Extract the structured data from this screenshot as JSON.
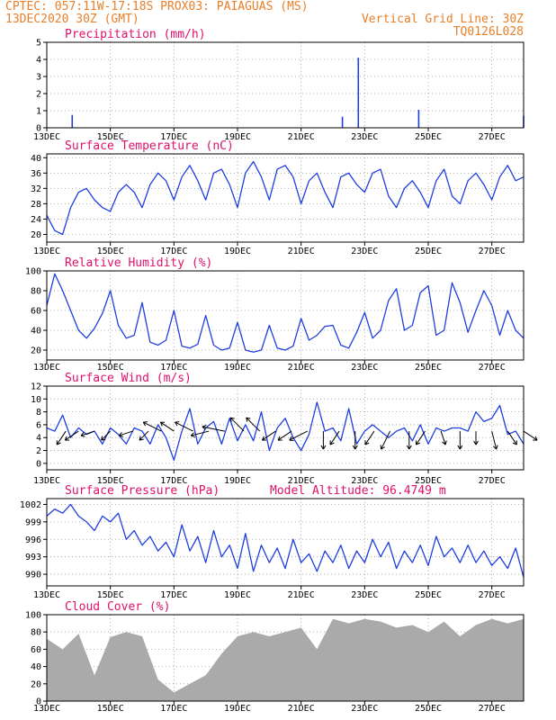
{
  "header": {
    "line1_left": "CPTEC:   057:11W-17:18S   PROX03: PAIAGUAS (MS)",
    "line2_left": "13DEC2020 30Z (GMT)",
    "line2_right": "Vertical Grid Line: 30Z",
    "line3_right": "TQ0126L028"
  },
  "colors": {
    "header": "#e8802a",
    "panel_title": "#e0106a",
    "series": "#1f3fdf",
    "cloud_fill": "#aaaaaa",
    "wind_arrow": "#000000"
  },
  "x_axis": {
    "labels": [
      "13DEC",
      "15DEC",
      "17DEC",
      "19DEC",
      "21DEC",
      "23DEC",
      "25DEC",
      "27DEC"
    ],
    "label_days": [
      0,
      2,
      4,
      6,
      8,
      10,
      12,
      14
    ],
    "range_days": [
      0,
      15
    ]
  },
  "chart_data": [
    {
      "type": "bar",
      "title": "Precipitation (mm/h)",
      "ylim": [
        0,
        5
      ],
      "yticks": [
        "0",
        "1",
        "2",
        "3",
        "4",
        "5"
      ],
      "x_days": [
        0.8,
        9.3,
        9.8,
        11.7,
        15.0
      ],
      "values": [
        0.75,
        0.65,
        4.1,
        1.05,
        0.7
      ]
    },
    {
      "type": "line",
      "title": "Surface Temperature (nC)",
      "ylim": [
        18,
        41
      ],
      "yticks": [
        "20",
        "24",
        "28",
        "32",
        "36",
        "40"
      ],
      "x": [
        0,
        0.25,
        0.5,
        0.75,
        1.0,
        1.25,
        1.5,
        1.75,
        2.0,
        2.25,
        2.5,
        2.75,
        3.0,
        3.25,
        3.5,
        3.75,
        4.0,
        4.25,
        4.5,
        4.75,
        5.0,
        5.25,
        5.5,
        5.75,
        6.0,
        6.25,
        6.5,
        6.75,
        7.0,
        7.25,
        7.5,
        7.75,
        8.0,
        8.25,
        8.5,
        8.75,
        9.0,
        9.25,
        9.5,
        9.75,
        10.0,
        10.25,
        10.5,
        10.75,
        11.0,
        11.25,
        11.5,
        11.75,
        12.0,
        12.25,
        12.5,
        12.75,
        13.0,
        13.25,
        13.5,
        13.75,
        14.0,
        14.25,
        14.5,
        14.75,
        15.0
      ],
      "values": [
        25,
        21,
        20,
        27,
        31,
        32,
        29,
        27,
        26,
        31,
        33,
        31,
        27,
        33,
        36,
        34,
        29,
        35,
        38,
        34,
        29,
        36,
        37,
        33,
        27,
        36,
        39,
        35,
        29,
        37,
        38,
        35,
        28,
        34,
        36,
        31,
        27,
        35,
        36,
        33,
        31,
        36,
        37,
        30,
        27,
        32,
        34,
        31,
        27,
        34,
        37,
        30,
        28,
        34,
        36,
        33,
        29,
        35,
        38,
        34,
        35
      ]
    },
    {
      "type": "line",
      "title": "Relative Humidity (%)",
      "ylim": [
        10,
        100
      ],
      "yticks": [
        "20",
        "40",
        "60",
        "80",
        "100"
      ],
      "x": [
        0,
        0.25,
        0.5,
        0.75,
        1.0,
        1.25,
        1.5,
        1.75,
        2.0,
        2.25,
        2.5,
        2.75,
        3.0,
        3.25,
        3.5,
        3.75,
        4.0,
        4.25,
        4.5,
        4.75,
        5.0,
        5.25,
        5.5,
        5.75,
        6.0,
        6.25,
        6.5,
        6.75,
        7.0,
        7.25,
        7.5,
        7.75,
        8.0,
        8.25,
        8.5,
        8.75,
        9.0,
        9.25,
        9.5,
        9.75,
        10.0,
        10.25,
        10.5,
        10.75,
        11.0,
        11.25,
        11.5,
        11.75,
        12.0,
        12.25,
        12.5,
        12.75,
        13.0,
        13.25,
        13.5,
        13.75,
        14.0,
        14.25,
        14.5,
        14.75,
        15.0
      ],
      "values": [
        65,
        97,
        80,
        60,
        40,
        32,
        42,
        57,
        80,
        45,
        32,
        35,
        68,
        28,
        25,
        30,
        60,
        24,
        22,
        26,
        55,
        25,
        20,
        22,
        48,
        20,
        18,
        20,
        45,
        22,
        20,
        24,
        52,
        30,
        35,
        44,
        45,
        25,
        22,
        38,
        58,
        32,
        40,
        70,
        82,
        40,
        45,
        78,
        85,
        35,
        40,
        88,
        68,
        38,
        60,
        80,
        65,
        35,
        60,
        40,
        32
      ]
    },
    {
      "type": "line",
      "title": "Surface Wind (m/s)",
      "ylim": [
        -1,
        12
      ],
      "yticks": [
        "0",
        "2",
        "4",
        "6",
        "8",
        "10",
        "12"
      ],
      "x": [
        0,
        0.25,
        0.5,
        0.75,
        1.0,
        1.25,
        1.5,
        1.75,
        2.0,
        2.25,
        2.5,
        2.75,
        3.0,
        3.25,
        3.5,
        3.75,
        4.0,
        4.25,
        4.5,
        4.75,
        5.0,
        5.25,
        5.5,
        5.75,
        6.0,
        6.25,
        6.5,
        6.75,
        7.0,
        7.25,
        7.5,
        7.75,
        8.0,
        8.25,
        8.5,
        8.75,
        9.0,
        9.25,
        9.5,
        9.75,
        10.0,
        10.25,
        10.5,
        10.75,
        11.0,
        11.25,
        11.5,
        11.75,
        12.0,
        12.25,
        12.5,
        12.75,
        13.0,
        13.25,
        13.5,
        13.75,
        14.0,
        14.25,
        14.5,
        14.75,
        15.0
      ],
      "values": [
        5.5,
        5.0,
        7.5,
        4.0,
        5.5,
        4.5,
        5.0,
        3.0,
        5.5,
        4.5,
        3.0,
        5.5,
        5.0,
        3.0,
        6.0,
        4.0,
        0.5,
        5.0,
        8.5,
        3.0,
        5.5,
        6.5,
        3.0,
        7.0,
        3.5,
        6.0,
        3.5,
        8.0,
        2.0,
        5.5,
        7.0,
        4.0,
        2.0,
        4.5,
        9.5,
        5.0,
        5.5,
        3.5,
        8.5,
        3.0,
        5.0,
        6.0,
        5.0,
        4.0,
        5.0,
        5.5,
        3.5,
        6.0,
        3.0,
        5.5,
        5.0,
        5.5,
        5.5,
        5.0,
        8.0,
        6.5,
        7.0,
        9.0,
        4.5,
        5.0,
        3.0
      ],
      "arrows": {
        "x": [
          0.6,
          1.0,
          1.5,
          2.0,
          2.7,
          3.2,
          3.6,
          4.0,
          4.6,
          5.1,
          5.6,
          6.2,
          6.7,
          7.2,
          7.7,
          8.2,
          8.7,
          9.2,
          9.7,
          10.3,
          10.8,
          11.4,
          11.9,
          12.4,
          13.0,
          13.5,
          14.0,
          14.5,
          15.0
        ],
        "u": [
          -2,
          -3,
          -3,
          -2,
          -3,
          -2,
          -4,
          -3,
          -4,
          -4,
          -5,
          -3,
          -3,
          -3,
          -3,
          -4,
          0,
          -2,
          0,
          -2,
          -2,
          0,
          -2,
          1,
          0,
          0,
          1,
          2,
          3
        ],
        "v": [
          -3,
          -2,
          -1,
          -2,
          -1,
          -2,
          2,
          2,
          2,
          -1,
          1,
          3,
          3,
          -2,
          -2,
          -2,
          -4,
          -3,
          -4,
          -3,
          -4,
          -4,
          -3,
          -3,
          -4,
          -3,
          -4,
          -3,
          -2
        ]
      }
    },
    {
      "type": "line",
      "title": "Surface Pressure (hPa)",
      "annotation": "Model Altitude: 96.4749 m",
      "ylim": [
        988,
        1003
      ],
      "yticks": [
        "990",
        "993",
        "996",
        "999",
        "1002"
      ],
      "x": [
        0,
        0.25,
        0.5,
        0.75,
        1.0,
        1.25,
        1.5,
        1.75,
        2.0,
        2.25,
        2.5,
        2.75,
        3.0,
        3.25,
        3.5,
        3.75,
        4.0,
        4.25,
        4.5,
        4.75,
        5.0,
        5.25,
        5.5,
        5.75,
        6.0,
        6.25,
        6.5,
        6.75,
        7.0,
        7.25,
        7.5,
        7.75,
        8.0,
        8.25,
        8.5,
        8.75,
        9.0,
        9.25,
        9.5,
        9.75,
        10.0,
        10.25,
        10.5,
        10.75,
        11.0,
        11.25,
        11.5,
        11.75,
        12.0,
        12.25,
        12.5,
        12.75,
        13.0,
        13.25,
        13.5,
        13.75,
        14.0,
        14.25,
        14.5,
        14.75,
        15.0
      ],
      "values": [
        1000,
        1001.2,
        1000.5,
        1002,
        1000,
        999,
        997.5,
        1000,
        999,
        1000.5,
        996,
        997.5,
        995,
        996.5,
        994,
        995.5,
        993,
        998.5,
        994,
        996.5,
        992,
        997.5,
        993,
        995,
        991,
        997,
        990.5,
        995,
        992,
        994.5,
        991,
        996,
        992,
        993.5,
        990.5,
        994,
        992,
        995,
        991,
        994,
        992,
        996,
        993,
        995.5,
        991,
        994,
        992,
        995,
        991.5,
        996.5,
        993,
        994.5,
        992,
        995,
        992,
        994,
        991.5,
        993,
        991,
        994.5,
        989.5
      ]
    },
    {
      "type": "area",
      "title": "Cloud Cover (%)",
      "ylim": [
        0,
        100
      ],
      "yticks": [
        "0",
        "20",
        "40",
        "60",
        "80",
        "100"
      ],
      "x": [
        0,
        0.5,
        1.0,
        1.5,
        2.0,
        2.5,
        3.0,
        3.5,
        4.0,
        4.5,
        5.0,
        5.5,
        6.0,
        6.5,
        7.0,
        7.5,
        8.0,
        8.5,
        9.0,
        9.5,
        10.0,
        10.5,
        11.0,
        11.5,
        12.0,
        12.5,
        13.0,
        13.5,
        14.0,
        14.5,
        15.0
      ],
      "values": [
        72,
        60,
        78,
        30,
        74,
        80,
        75,
        25,
        10,
        20,
        30,
        55,
        75,
        80,
        75,
        80,
        85,
        60,
        95,
        90,
        95,
        92,
        85,
        88,
        80,
        92,
        75,
        88,
        95,
        90,
        95
      ]
    }
  ]
}
